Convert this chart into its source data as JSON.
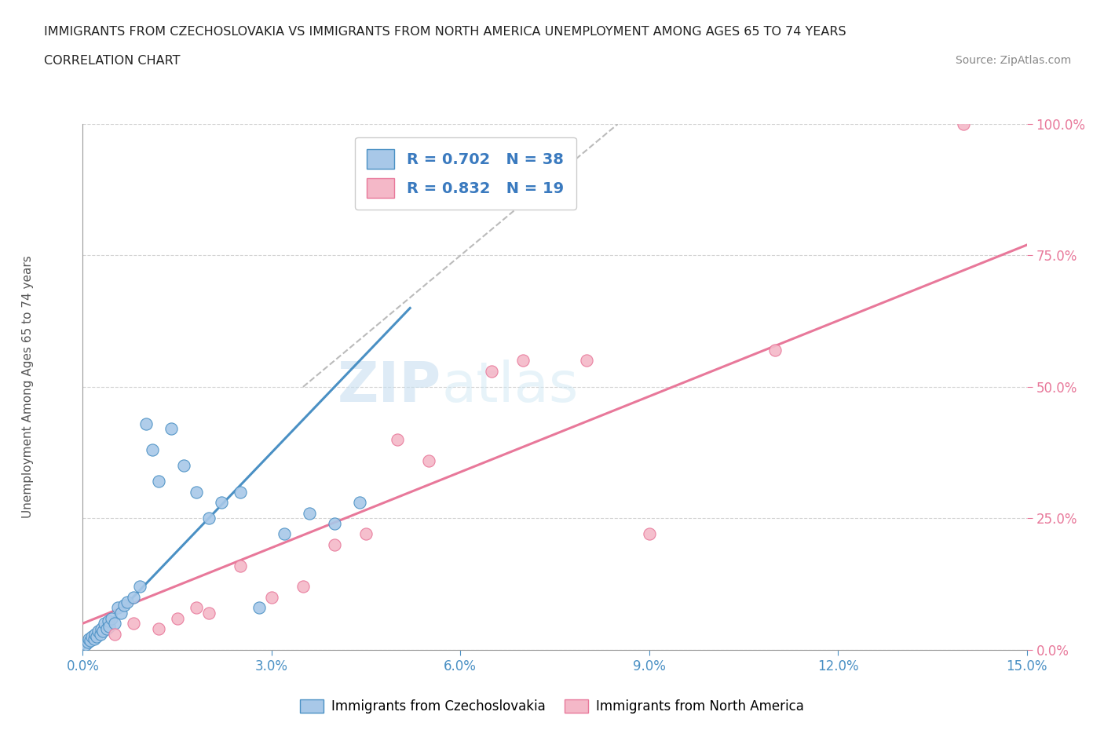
{
  "title_line1": "IMMIGRANTS FROM CZECHOSLOVAKIA VS IMMIGRANTS FROM NORTH AMERICA UNEMPLOYMENT AMONG AGES 65 TO 74 YEARS",
  "title_line2": "CORRELATION CHART",
  "source_text": "Source: ZipAtlas.com",
  "ylabel": "Unemployment Among Ages 65 to 74 years",
  "x_min": 0.0,
  "x_max": 15.0,
  "y_min": 0.0,
  "y_max": 100.0,
  "x_ticks": [
    0.0,
    3.0,
    6.0,
    9.0,
    12.0,
    15.0
  ],
  "x_tick_labels": [
    "0.0%",
    "3.0%",
    "6.0%",
    "9.0%",
    "12.0%",
    "15.0%"
  ],
  "y_ticks": [
    0.0,
    25.0,
    50.0,
    75.0,
    100.0
  ],
  "y_tick_labels": [
    "0.0%",
    "25.0%",
    "50.0%",
    "75.0%",
    "100.0%"
  ],
  "blue_color": "#a8c8e8",
  "pink_color": "#f4b8c8",
  "blue_edge": "#4a90c4",
  "pink_edge": "#e8789a",
  "blue_R": 0.702,
  "blue_N": 38,
  "pink_R": 0.832,
  "pink_N": 19,
  "legend1_label": "Immigrants from Czechoslovakia",
  "legend2_label": "Immigrants from North America",
  "watermark_zip": "ZIP",
  "watermark_atlas": "atlas",
  "blue_scatter_x": [
    0.05,
    0.08,
    0.1,
    0.12,
    0.15,
    0.18,
    0.2,
    0.22,
    0.25,
    0.28,
    0.3,
    0.32,
    0.35,
    0.38,
    0.4,
    0.42,
    0.45,
    0.5,
    0.55,
    0.6,
    0.65,
    0.7,
    0.8,
    0.9,
    1.0,
    1.1,
    1.2,
    1.4,
    1.6,
    1.8,
    2.0,
    2.2,
    2.5,
    2.8,
    3.2,
    3.6,
    4.0,
    4.4
  ],
  "blue_scatter_y": [
    1.0,
    1.5,
    2.0,
    1.8,
    2.5,
    2.0,
    3.0,
    2.5,
    3.5,
    3.0,
    4.0,
    3.5,
    5.0,
    4.0,
    5.5,
    4.5,
    6.0,
    5.0,
    8.0,
    7.0,
    8.5,
    9.0,
    10.0,
    12.0,
    43.0,
    38.0,
    32.0,
    42.0,
    35.0,
    30.0,
    25.0,
    28.0,
    30.0,
    8.0,
    22.0,
    26.0,
    24.0,
    28.0
  ],
  "pink_scatter_x": [
    0.5,
    0.8,
    1.2,
    1.5,
    1.8,
    2.0,
    2.5,
    3.0,
    3.5,
    4.0,
    4.5,
    5.0,
    5.5,
    6.5,
    7.0,
    8.0,
    9.0,
    11.0,
    14.0
  ],
  "pink_scatter_y": [
    3.0,
    5.0,
    4.0,
    6.0,
    8.0,
    7.0,
    16.0,
    10.0,
    12.0,
    20.0,
    22.0,
    40.0,
    36.0,
    53.0,
    55.0,
    55.0,
    22.0,
    57.0,
    100.0
  ],
  "blue_line_x0": 0.0,
  "blue_line_x1": 5.2,
  "blue_line_y0": 0.0,
  "blue_line_y1": 65.0,
  "pink_line_x0": 0.0,
  "pink_line_x1": 15.0,
  "pink_line_y0": 5.0,
  "pink_line_y1": 77.0,
  "diag_x0": 3.5,
  "diag_x1": 8.5,
  "diag_y0": 50.0,
  "diag_y1": 100.0,
  "background_color": "#ffffff",
  "grid_color": "#d0d0d0",
  "title_color": "#222222",
  "axis_tick_color_x": "#4a90c4",
  "axis_tick_color_y": "#e8789a",
  "legend_text_color": "#3a7abf"
}
